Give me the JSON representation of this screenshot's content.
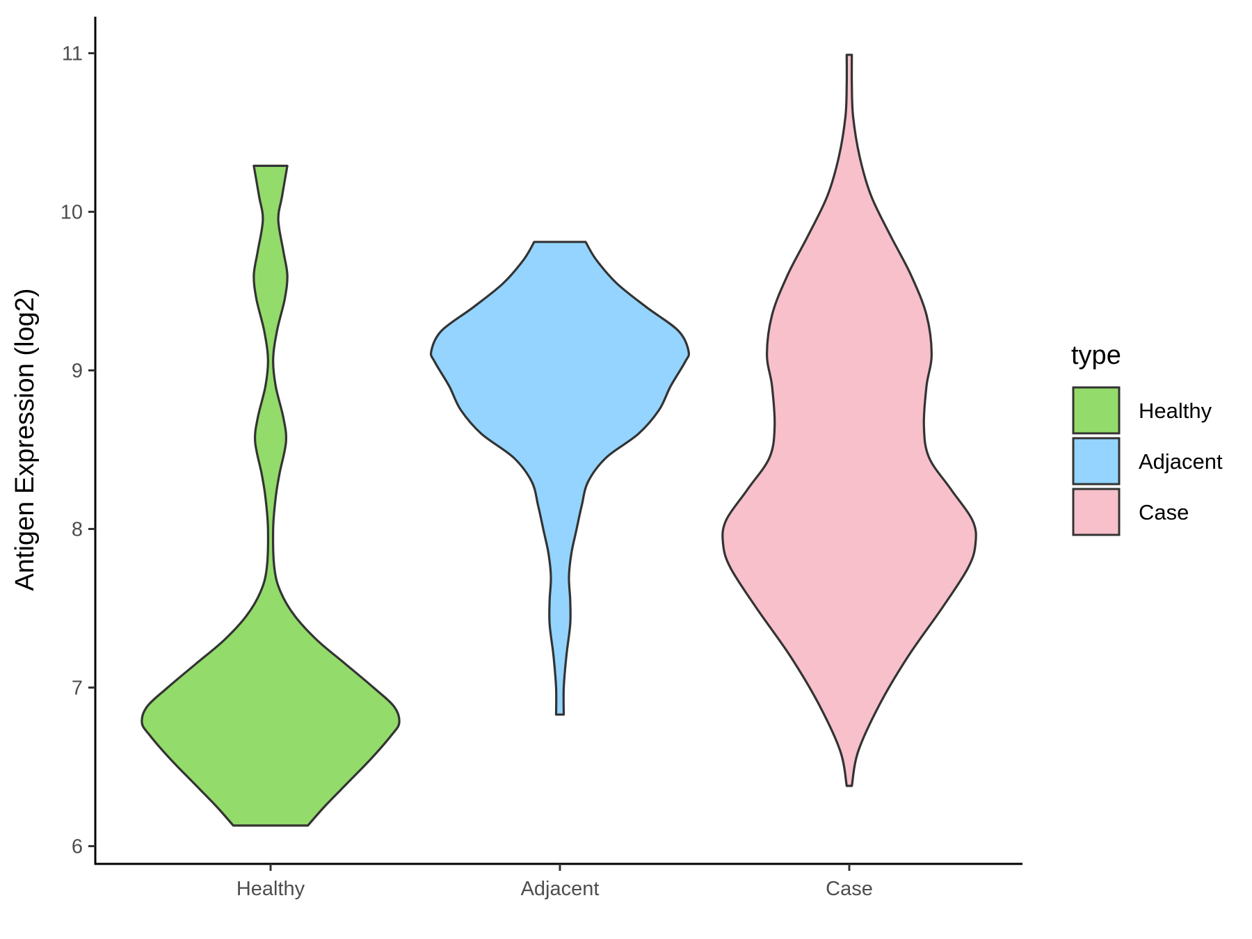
{
  "chart_data": {
    "type": "violin",
    "title": "",
    "xlabel": "",
    "ylabel": "Antigen Expression (log2)",
    "categories": [
      "Healthy",
      "Adjacent",
      "Case"
    ],
    "ylim": [
      6,
      11
    ],
    "yticks": [
      6,
      7,
      8,
      9,
      10,
      11
    ],
    "grid": false,
    "legend": {
      "title": "type",
      "position": "right",
      "entries": [
        "Healthy",
        "Adjacent",
        "Case"
      ]
    },
    "series": [
      {
        "category": "Healthy",
        "color": "#93DB6A",
        "min": 6.13,
        "max": 10.29,
        "density_profile": [
          [
            6.13,
            0.29
          ],
          [
            6.25,
            0.42
          ],
          [
            6.4,
            0.6
          ],
          [
            6.55,
            0.78
          ],
          [
            6.7,
            0.94
          ],
          [
            6.78,
            1.0
          ],
          [
            6.88,
            0.96
          ],
          [
            7.0,
            0.8
          ],
          [
            7.15,
            0.58
          ],
          [
            7.3,
            0.36
          ],
          [
            7.45,
            0.19
          ],
          [
            7.6,
            0.08
          ],
          [
            7.75,
            0.03
          ],
          [
            8.0,
            0.01
          ],
          [
            8.2,
            0.04
          ],
          [
            8.35,
            0.07
          ],
          [
            8.55,
            0.12
          ],
          [
            8.7,
            0.1
          ],
          [
            8.9,
            0.04
          ],
          [
            9.07,
            0.01
          ],
          [
            9.25,
            0.05
          ],
          [
            9.45,
            0.11
          ],
          [
            9.6,
            0.13
          ],
          [
            9.75,
            0.1
          ],
          [
            9.95,
            0.06
          ],
          [
            10.1,
            0.09
          ],
          [
            10.29,
            0.13
          ]
        ]
      },
      {
        "category": "Adjacent",
        "color": "#94D4FF",
        "min": 6.83,
        "max": 9.81,
        "density_profile": [
          [
            6.83,
            0.03
          ],
          [
            7.0,
            0.03
          ],
          [
            7.2,
            0.05
          ],
          [
            7.4,
            0.08
          ],
          [
            7.55,
            0.08
          ],
          [
            7.7,
            0.07
          ],
          [
            7.85,
            0.09
          ],
          [
            8.0,
            0.13
          ],
          [
            8.15,
            0.17
          ],
          [
            8.3,
            0.22
          ],
          [
            8.45,
            0.36
          ],
          [
            8.6,
            0.61
          ],
          [
            8.75,
            0.77
          ],
          [
            8.9,
            0.86
          ],
          [
            9.05,
            0.97
          ],
          [
            9.12,
            1.0
          ],
          [
            9.25,
            0.92
          ],
          [
            9.4,
            0.67
          ],
          [
            9.55,
            0.44
          ],
          [
            9.7,
            0.28
          ],
          [
            9.81,
            0.2
          ]
        ]
      },
      {
        "category": "Case",
        "color": "#F7C0CB",
        "min": 6.38,
        "max": 10.99,
        "density_profile": [
          [
            6.38,
            0.02
          ],
          [
            6.6,
            0.07
          ],
          [
            6.9,
            0.24
          ],
          [
            7.2,
            0.46
          ],
          [
            7.5,
            0.72
          ],
          [
            7.75,
            0.92
          ],
          [
            7.9,
            0.98
          ],
          [
            8.05,
            0.96
          ],
          [
            8.25,
            0.79
          ],
          [
            8.45,
            0.62
          ],
          [
            8.65,
            0.58
          ],
          [
            8.9,
            0.6
          ],
          [
            9.1,
            0.64
          ],
          [
            9.35,
            0.6
          ],
          [
            9.6,
            0.48
          ],
          [
            9.85,
            0.32
          ],
          [
            10.1,
            0.17
          ],
          [
            10.35,
            0.08
          ],
          [
            10.6,
            0.03
          ],
          [
            10.8,
            0.01
          ],
          [
            10.99,
            0.005
          ]
        ]
      }
    ]
  }
}
